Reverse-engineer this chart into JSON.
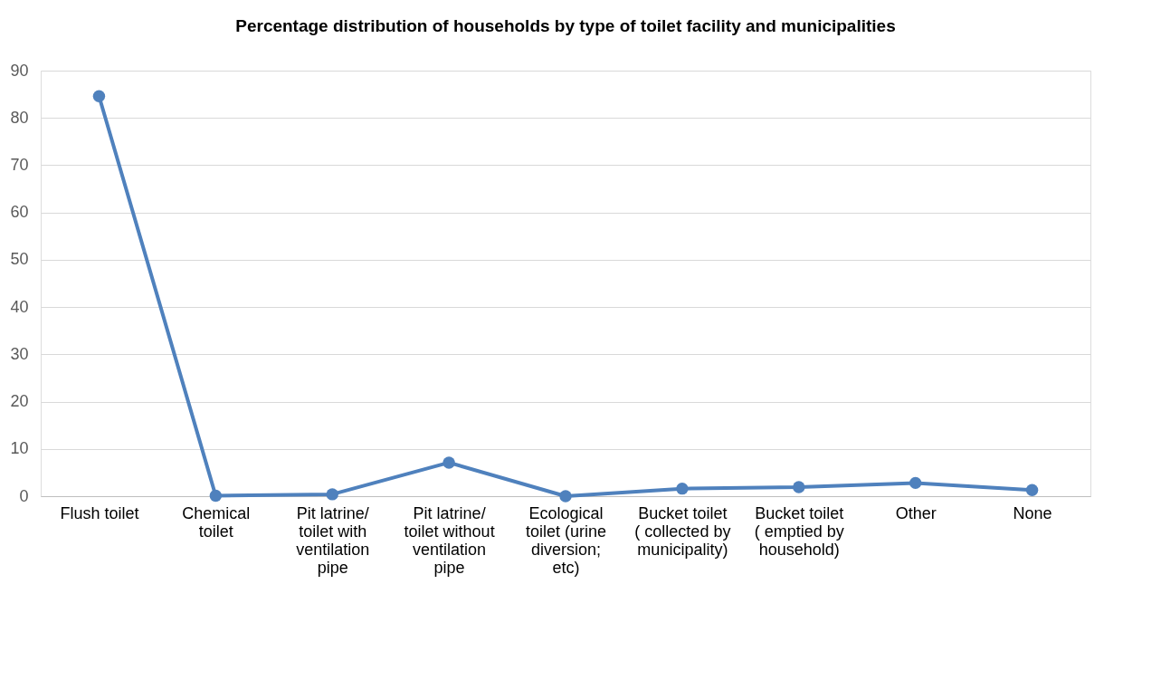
{
  "chart_data": {
    "type": "line",
    "title": "Percentage distribution of households by type of toilet facility and municipalities",
    "categories": [
      "Flush toilet",
      "Chemical toilet",
      "Pit latrine/ toilet with ventilation pipe",
      "Pit latrine/ toilet without ventilation pipe",
      "Ecological toilet (urine diversion; etc)",
      "Bucket toilet ( collected by municipality)",
      "Bucket toilet ( emptied by household)",
      "Other",
      "None"
    ],
    "series": [
      {
        "color": "#4f81bd",
        "values": [
          84.6,
          0.1,
          0.4,
          7.1,
          0.0,
          1.6,
          1.9,
          2.8,
          1.3
        ]
      }
    ],
    "ylim": [
      0,
      90
    ],
    "yticks": [
      0,
      10,
      20,
      30,
      40,
      50,
      60,
      70,
      80,
      90
    ],
    "grid": "y",
    "marker": "circle",
    "line_style": "solid",
    "legend": false
  }
}
